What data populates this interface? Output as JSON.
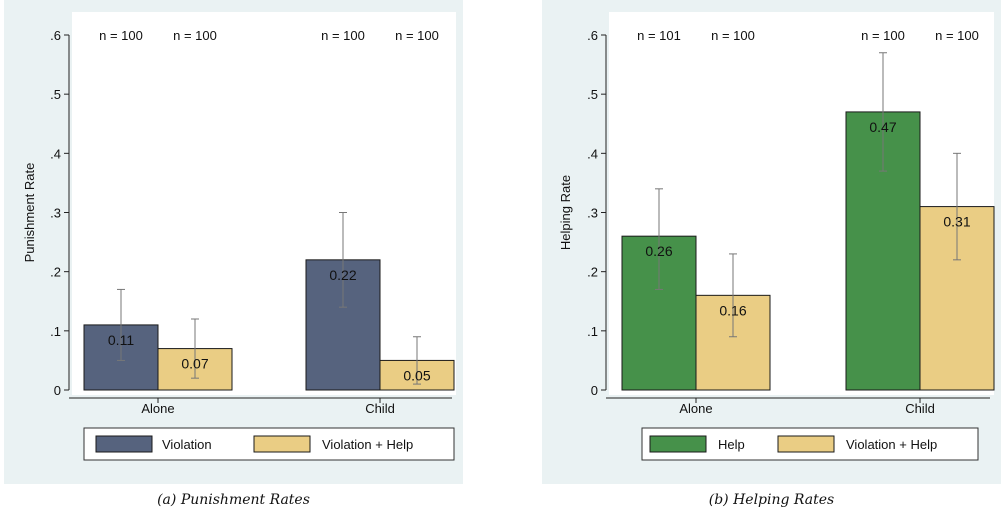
{
  "colors": {
    "violation": "#56637e",
    "help": "#46914a",
    "violation_help": "#eacd84",
    "background": "#eaf2f3",
    "errorbar": "#777777"
  },
  "chart_data": [
    {
      "type": "bar",
      "caption": "(a) Punishment Rates",
      "ylabel": "Punishment Rate",
      "xlabel": "",
      "ylim": [
        0,
        0.6
      ],
      "yticks": [
        0,
        0.1,
        0.2,
        0.3,
        0.4,
        0.5,
        0.6
      ],
      "ytick_labels": [
        "0",
        ".1",
        ".2",
        ".3",
        ".4",
        ".5",
        ".6"
      ],
      "categories": [
        "Alone",
        "Child"
      ],
      "sample_sizes": [
        [
          "n = 100",
          "n = 100"
        ],
        [
          "n = 100",
          "n = 100"
        ]
      ],
      "legend_position": "bottom",
      "series": [
        {
          "name": "Violation",
          "color": "#56637e",
          "label_color": "#ffffff",
          "values": [
            0.11,
            0.22
          ],
          "labels": [
            "0.11",
            "0.22"
          ],
          "ci_low": [
            0.05,
            0.14
          ],
          "ci_high": [
            0.17,
            0.3
          ]
        },
        {
          "name": "Violation + Help",
          "color": "#eacd84",
          "label_color": "#111111",
          "values": [
            0.07,
            0.05
          ],
          "labels": [
            "0.07",
            "0.05"
          ],
          "ci_low": [
            0.02,
            0.01
          ],
          "ci_high": [
            0.12,
            0.09
          ]
        }
      ]
    },
    {
      "type": "bar",
      "caption": "(b) Helping Rates",
      "ylabel": "Helping Rate",
      "xlabel": "",
      "ylim": [
        0,
        0.6
      ],
      "yticks": [
        0,
        0.1,
        0.2,
        0.3,
        0.4,
        0.5,
        0.6
      ],
      "ytick_labels": [
        "0",
        ".1",
        ".2",
        ".3",
        ".4",
        ".5",
        ".6"
      ],
      "categories": [
        "Alone",
        "Child"
      ],
      "sample_sizes": [
        [
          "n = 101",
          "n = 100"
        ],
        [
          "n = 100",
          "n = 100"
        ]
      ],
      "legend_position": "bottom",
      "series": [
        {
          "name": "Help",
          "color": "#46914a",
          "label_color": "#ffffff",
          "values": [
            0.26,
            0.47
          ],
          "labels": [
            "0.26",
            "0.47"
          ],
          "ci_low": [
            0.17,
            0.37
          ],
          "ci_high": [
            0.34,
            0.57
          ]
        },
        {
          "name": "Violation + Help",
          "color": "#eacd84",
          "label_color": "#111111",
          "values": [
            0.16,
            0.31
          ],
          "labels": [
            "0.16",
            "0.31"
          ],
          "ci_low": [
            0.09,
            0.22
          ],
          "ci_high": [
            0.23,
            0.4
          ]
        }
      ]
    }
  ]
}
